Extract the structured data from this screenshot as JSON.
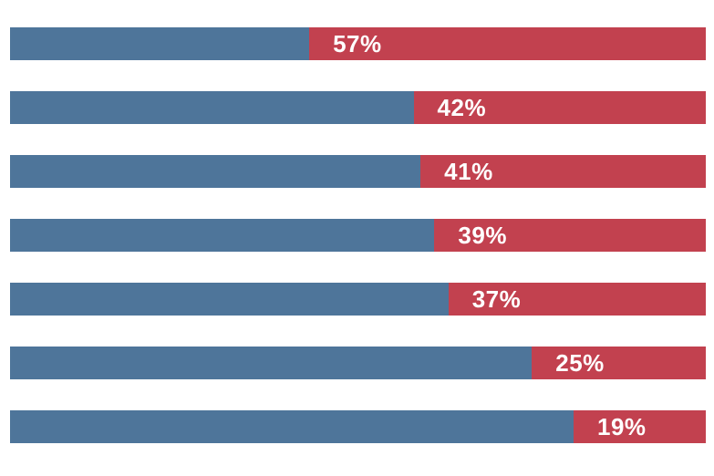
{
  "page": {
    "background_color": "#ffffff"
  },
  "chart_data": {
    "type": "bar",
    "orientation": "horizontal",
    "stacked": true,
    "title": "",
    "xlabel": "",
    "ylabel": "",
    "xlim": [
      0,
      100
    ],
    "grid": false,
    "legend": "none",
    "axes_visible": false,
    "bar_count": 7,
    "colors": {
      "blue_segment": "#4e759a",
      "red_segment": "#c2414f",
      "value_label": "#ffffff"
    },
    "series": [
      {
        "name": "blue-segment",
        "color": "#4e759a",
        "values": [
          43,
          58,
          59,
          61,
          63,
          75,
          81
        ]
      },
      {
        "name": "red-segment",
        "color": "#c2414f",
        "values": [
          57,
          42,
          41,
          39,
          37,
          25,
          19
        ]
      }
    ],
    "bars": [
      {
        "blue_pct": 43,
        "red_pct": 57,
        "label": "57%"
      },
      {
        "blue_pct": 58,
        "red_pct": 42,
        "label": "42%"
      },
      {
        "blue_pct": 59,
        "red_pct": 41,
        "label": "41%"
      },
      {
        "blue_pct": 61,
        "red_pct": 39,
        "label": "39%"
      },
      {
        "blue_pct": 63,
        "red_pct": 37,
        "label": "37%"
      },
      {
        "blue_pct": 75,
        "red_pct": 25,
        "label": "25%"
      },
      {
        "blue_pct": 81,
        "red_pct": 19,
        "label": "19%"
      }
    ],
    "value_labels": [
      "57%",
      "42%",
      "41%",
      "39%",
      "37%",
      "25%",
      "19%"
    ]
  }
}
